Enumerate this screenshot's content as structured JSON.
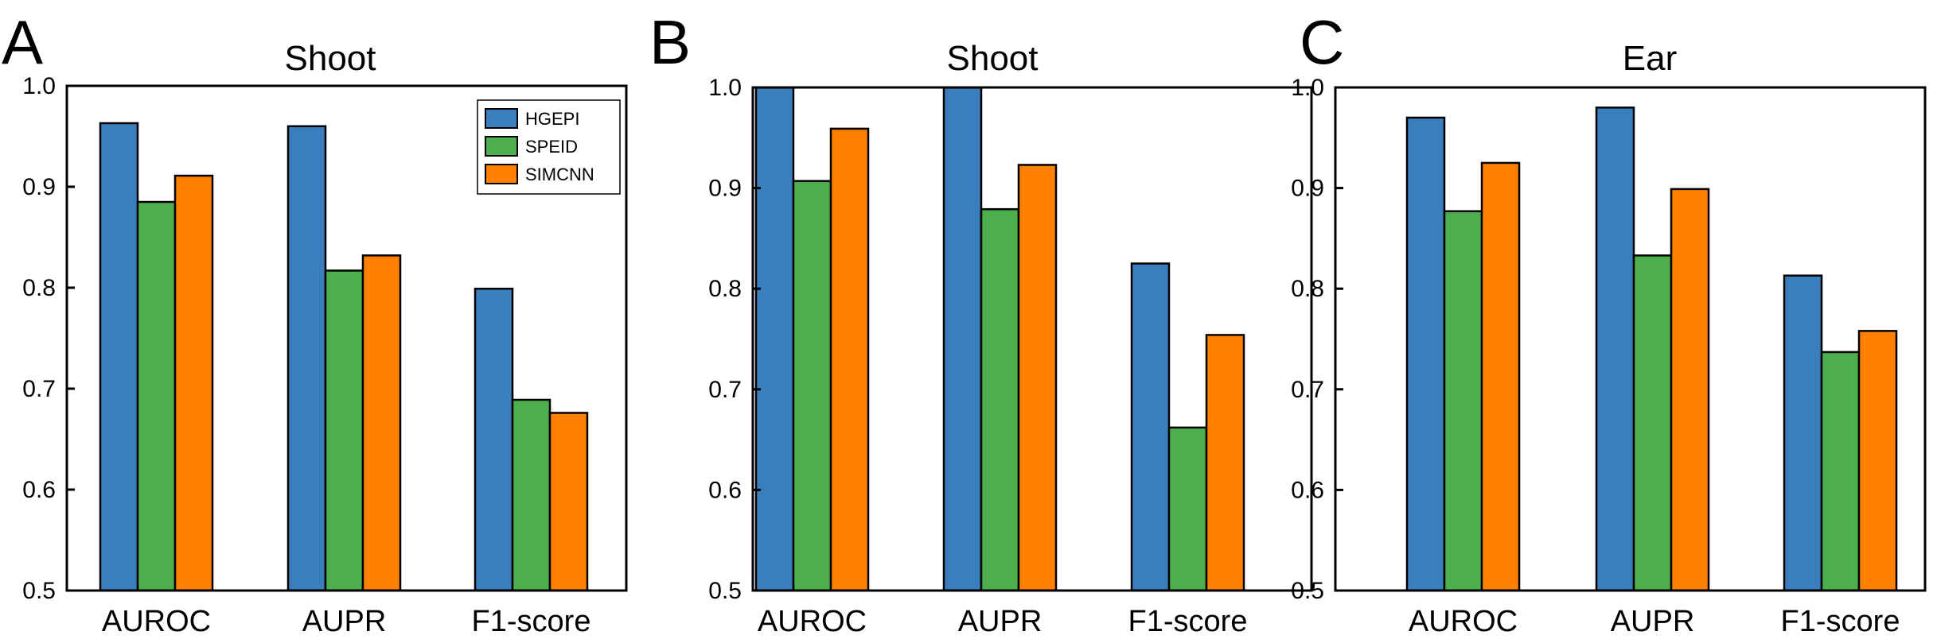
{
  "chart_data": [
    {
      "type": "bar",
      "panel_label": "A",
      "title": "Shoot",
      "categories": [
        "AUROC",
        "AUPR",
        "F1-score"
      ],
      "series": [
        {
          "name": "HGEPI",
          "values": [
            0.963,
            0.96,
            0.799
          ]
        },
        {
          "name": "SPEID",
          "values": [
            0.885,
            0.817,
            0.689
          ]
        },
        {
          "name": "SIMCNN",
          "values": [
            0.911,
            0.832,
            0.676
          ]
        }
      ],
      "ylim": [
        0.5,
        1.0
      ],
      "yticks": [
        "0.5",
        "0.6",
        "0.7",
        "0.8",
        "0.9",
        "1.0"
      ],
      "legend": "top-right",
      "grid": false
    },
    {
      "type": "bar",
      "panel_label": "B",
      "title": "Shoot",
      "categories": [
        "AUROC",
        "AUPR",
        "F1-score"
      ],
      "series": [
        {
          "name": "HGEPI",
          "values": [
            1.0,
            1.0,
            0.825
          ]
        },
        {
          "name": "SPEID",
          "values": [
            0.907,
            0.879,
            0.662
          ]
        },
        {
          "name": "SIMCNN",
          "values": [
            0.959,
            0.923,
            0.754
          ]
        }
      ],
      "ylim": [
        0.5,
        1.0
      ],
      "yticks": [
        "0.5",
        "0.6",
        "0.7",
        "0.8",
        "0.9",
        "1.0"
      ],
      "grid": false
    },
    {
      "type": "bar",
      "panel_label": "C",
      "title": "Ear",
      "categories": [
        "AUROC",
        "AUPR",
        "F1-score"
      ],
      "series": [
        {
          "name": "HGEPI",
          "values": [
            0.97,
            0.98,
            0.813
          ]
        },
        {
          "name": "SPEID",
          "values": [
            0.877,
            0.833,
            0.737
          ]
        },
        {
          "name": "SIMCNN",
          "values": [
            0.925,
            0.899,
            0.758
          ]
        }
      ],
      "ylim": [
        0.5,
        1.0
      ],
      "yticks": [
        "0.5",
        "0.6",
        "0.7",
        "0.8",
        "0.9",
        "1.0"
      ],
      "grid": false
    }
  ],
  "colors": {
    "HGEPI": "#3a7ebd",
    "SPEID": "#4cae4c",
    "SIMCNN": "#ff8000"
  }
}
